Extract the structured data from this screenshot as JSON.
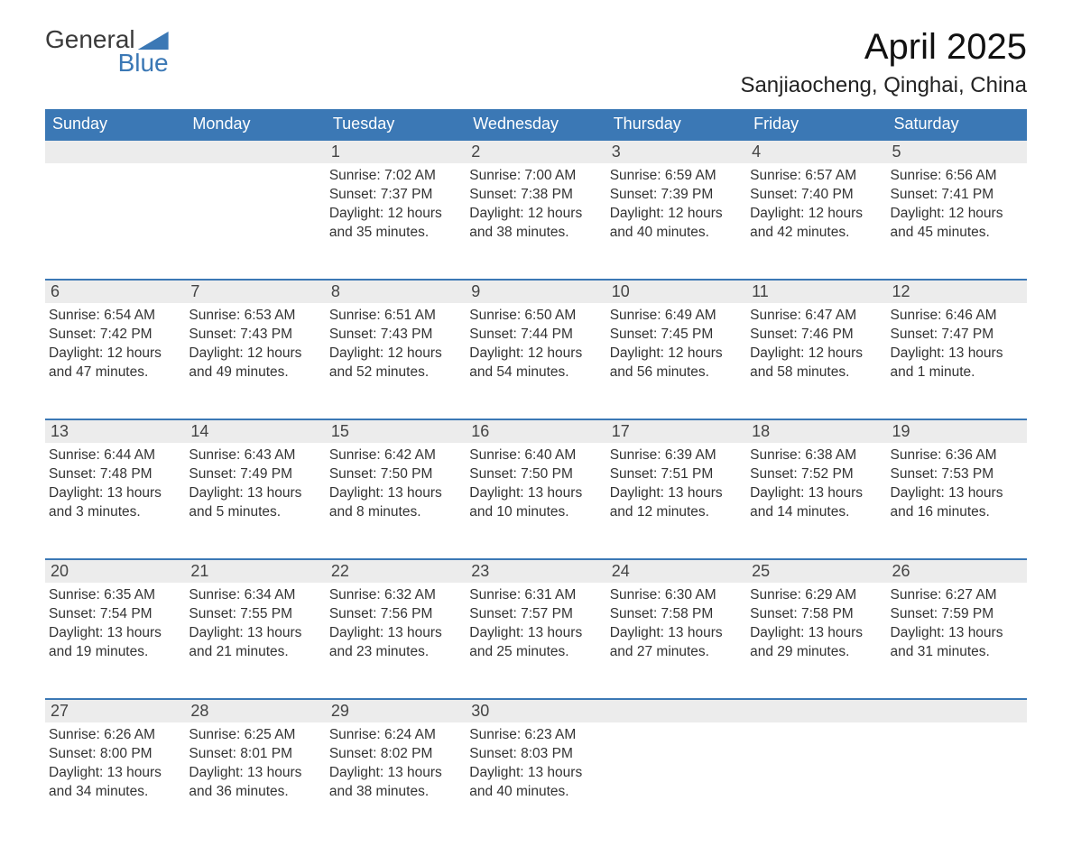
{
  "logo": {
    "line1": "General",
    "line2": "Blue"
  },
  "colors": {
    "brand_blue": "#3b78b5",
    "header_bg": "#3b78b5",
    "header_text": "#ffffff",
    "daynum_bg": "#ececec",
    "page_bg": "#ffffff",
    "text": "#333333"
  },
  "title": "April 2025",
  "location": "Sanjiaocheng, Qinghai, China",
  "weekdays": [
    "Sunday",
    "Monday",
    "Tuesday",
    "Wednesday",
    "Thursday",
    "Friday",
    "Saturday"
  ],
  "weeks": [
    [
      null,
      null,
      {
        "n": "1",
        "sunrise": "Sunrise: 7:02 AM",
        "sunset": "Sunset: 7:37 PM",
        "day1": "Daylight: 12 hours",
        "day2": "and 35 minutes."
      },
      {
        "n": "2",
        "sunrise": "Sunrise: 7:00 AM",
        "sunset": "Sunset: 7:38 PM",
        "day1": "Daylight: 12 hours",
        "day2": "and 38 minutes."
      },
      {
        "n": "3",
        "sunrise": "Sunrise: 6:59 AM",
        "sunset": "Sunset: 7:39 PM",
        "day1": "Daylight: 12 hours",
        "day2": "and 40 minutes."
      },
      {
        "n": "4",
        "sunrise": "Sunrise: 6:57 AM",
        "sunset": "Sunset: 7:40 PM",
        "day1": "Daylight: 12 hours",
        "day2": "and 42 minutes."
      },
      {
        "n": "5",
        "sunrise": "Sunrise: 6:56 AM",
        "sunset": "Sunset: 7:41 PM",
        "day1": "Daylight: 12 hours",
        "day2": "and 45 minutes."
      }
    ],
    [
      {
        "n": "6",
        "sunrise": "Sunrise: 6:54 AM",
        "sunset": "Sunset: 7:42 PM",
        "day1": "Daylight: 12 hours",
        "day2": "and 47 minutes."
      },
      {
        "n": "7",
        "sunrise": "Sunrise: 6:53 AM",
        "sunset": "Sunset: 7:43 PM",
        "day1": "Daylight: 12 hours",
        "day2": "and 49 minutes."
      },
      {
        "n": "8",
        "sunrise": "Sunrise: 6:51 AM",
        "sunset": "Sunset: 7:43 PM",
        "day1": "Daylight: 12 hours",
        "day2": "and 52 minutes."
      },
      {
        "n": "9",
        "sunrise": "Sunrise: 6:50 AM",
        "sunset": "Sunset: 7:44 PM",
        "day1": "Daylight: 12 hours",
        "day2": "and 54 minutes."
      },
      {
        "n": "10",
        "sunrise": "Sunrise: 6:49 AM",
        "sunset": "Sunset: 7:45 PM",
        "day1": "Daylight: 12 hours",
        "day2": "and 56 minutes."
      },
      {
        "n": "11",
        "sunrise": "Sunrise: 6:47 AM",
        "sunset": "Sunset: 7:46 PM",
        "day1": "Daylight: 12 hours",
        "day2": "and 58 minutes."
      },
      {
        "n": "12",
        "sunrise": "Sunrise: 6:46 AM",
        "sunset": "Sunset: 7:47 PM",
        "day1": "Daylight: 13 hours",
        "day2": "and 1 minute."
      }
    ],
    [
      {
        "n": "13",
        "sunrise": "Sunrise: 6:44 AM",
        "sunset": "Sunset: 7:48 PM",
        "day1": "Daylight: 13 hours",
        "day2": "and 3 minutes."
      },
      {
        "n": "14",
        "sunrise": "Sunrise: 6:43 AM",
        "sunset": "Sunset: 7:49 PM",
        "day1": "Daylight: 13 hours",
        "day2": "and 5 minutes."
      },
      {
        "n": "15",
        "sunrise": "Sunrise: 6:42 AM",
        "sunset": "Sunset: 7:50 PM",
        "day1": "Daylight: 13 hours",
        "day2": "and 8 minutes."
      },
      {
        "n": "16",
        "sunrise": "Sunrise: 6:40 AM",
        "sunset": "Sunset: 7:50 PM",
        "day1": "Daylight: 13 hours",
        "day2": "and 10 minutes."
      },
      {
        "n": "17",
        "sunrise": "Sunrise: 6:39 AM",
        "sunset": "Sunset: 7:51 PM",
        "day1": "Daylight: 13 hours",
        "day2": "and 12 minutes."
      },
      {
        "n": "18",
        "sunrise": "Sunrise: 6:38 AM",
        "sunset": "Sunset: 7:52 PM",
        "day1": "Daylight: 13 hours",
        "day2": "and 14 minutes."
      },
      {
        "n": "19",
        "sunrise": "Sunrise: 6:36 AM",
        "sunset": "Sunset: 7:53 PM",
        "day1": "Daylight: 13 hours",
        "day2": "and 16 minutes."
      }
    ],
    [
      {
        "n": "20",
        "sunrise": "Sunrise: 6:35 AM",
        "sunset": "Sunset: 7:54 PM",
        "day1": "Daylight: 13 hours",
        "day2": "and 19 minutes."
      },
      {
        "n": "21",
        "sunrise": "Sunrise: 6:34 AM",
        "sunset": "Sunset: 7:55 PM",
        "day1": "Daylight: 13 hours",
        "day2": "and 21 minutes."
      },
      {
        "n": "22",
        "sunrise": "Sunrise: 6:32 AM",
        "sunset": "Sunset: 7:56 PM",
        "day1": "Daylight: 13 hours",
        "day2": "and 23 minutes."
      },
      {
        "n": "23",
        "sunrise": "Sunrise: 6:31 AM",
        "sunset": "Sunset: 7:57 PM",
        "day1": "Daylight: 13 hours",
        "day2": "and 25 minutes."
      },
      {
        "n": "24",
        "sunrise": "Sunrise: 6:30 AM",
        "sunset": "Sunset: 7:58 PM",
        "day1": "Daylight: 13 hours",
        "day2": "and 27 minutes."
      },
      {
        "n": "25",
        "sunrise": "Sunrise: 6:29 AM",
        "sunset": "Sunset: 7:58 PM",
        "day1": "Daylight: 13 hours",
        "day2": "and 29 minutes."
      },
      {
        "n": "26",
        "sunrise": "Sunrise: 6:27 AM",
        "sunset": "Sunset: 7:59 PM",
        "day1": "Daylight: 13 hours",
        "day2": "and 31 minutes."
      }
    ],
    [
      {
        "n": "27",
        "sunrise": "Sunrise: 6:26 AM",
        "sunset": "Sunset: 8:00 PM",
        "day1": "Daylight: 13 hours",
        "day2": "and 34 minutes."
      },
      {
        "n": "28",
        "sunrise": "Sunrise: 6:25 AM",
        "sunset": "Sunset: 8:01 PM",
        "day1": "Daylight: 13 hours",
        "day2": "and 36 minutes."
      },
      {
        "n": "29",
        "sunrise": "Sunrise: 6:24 AM",
        "sunset": "Sunset: 8:02 PM",
        "day1": "Daylight: 13 hours",
        "day2": "and 38 minutes."
      },
      {
        "n": "30",
        "sunrise": "Sunrise: 6:23 AM",
        "sunset": "Sunset: 8:03 PM",
        "day1": "Daylight: 13 hours",
        "day2": "and 40 minutes."
      },
      null,
      null,
      null
    ]
  ]
}
